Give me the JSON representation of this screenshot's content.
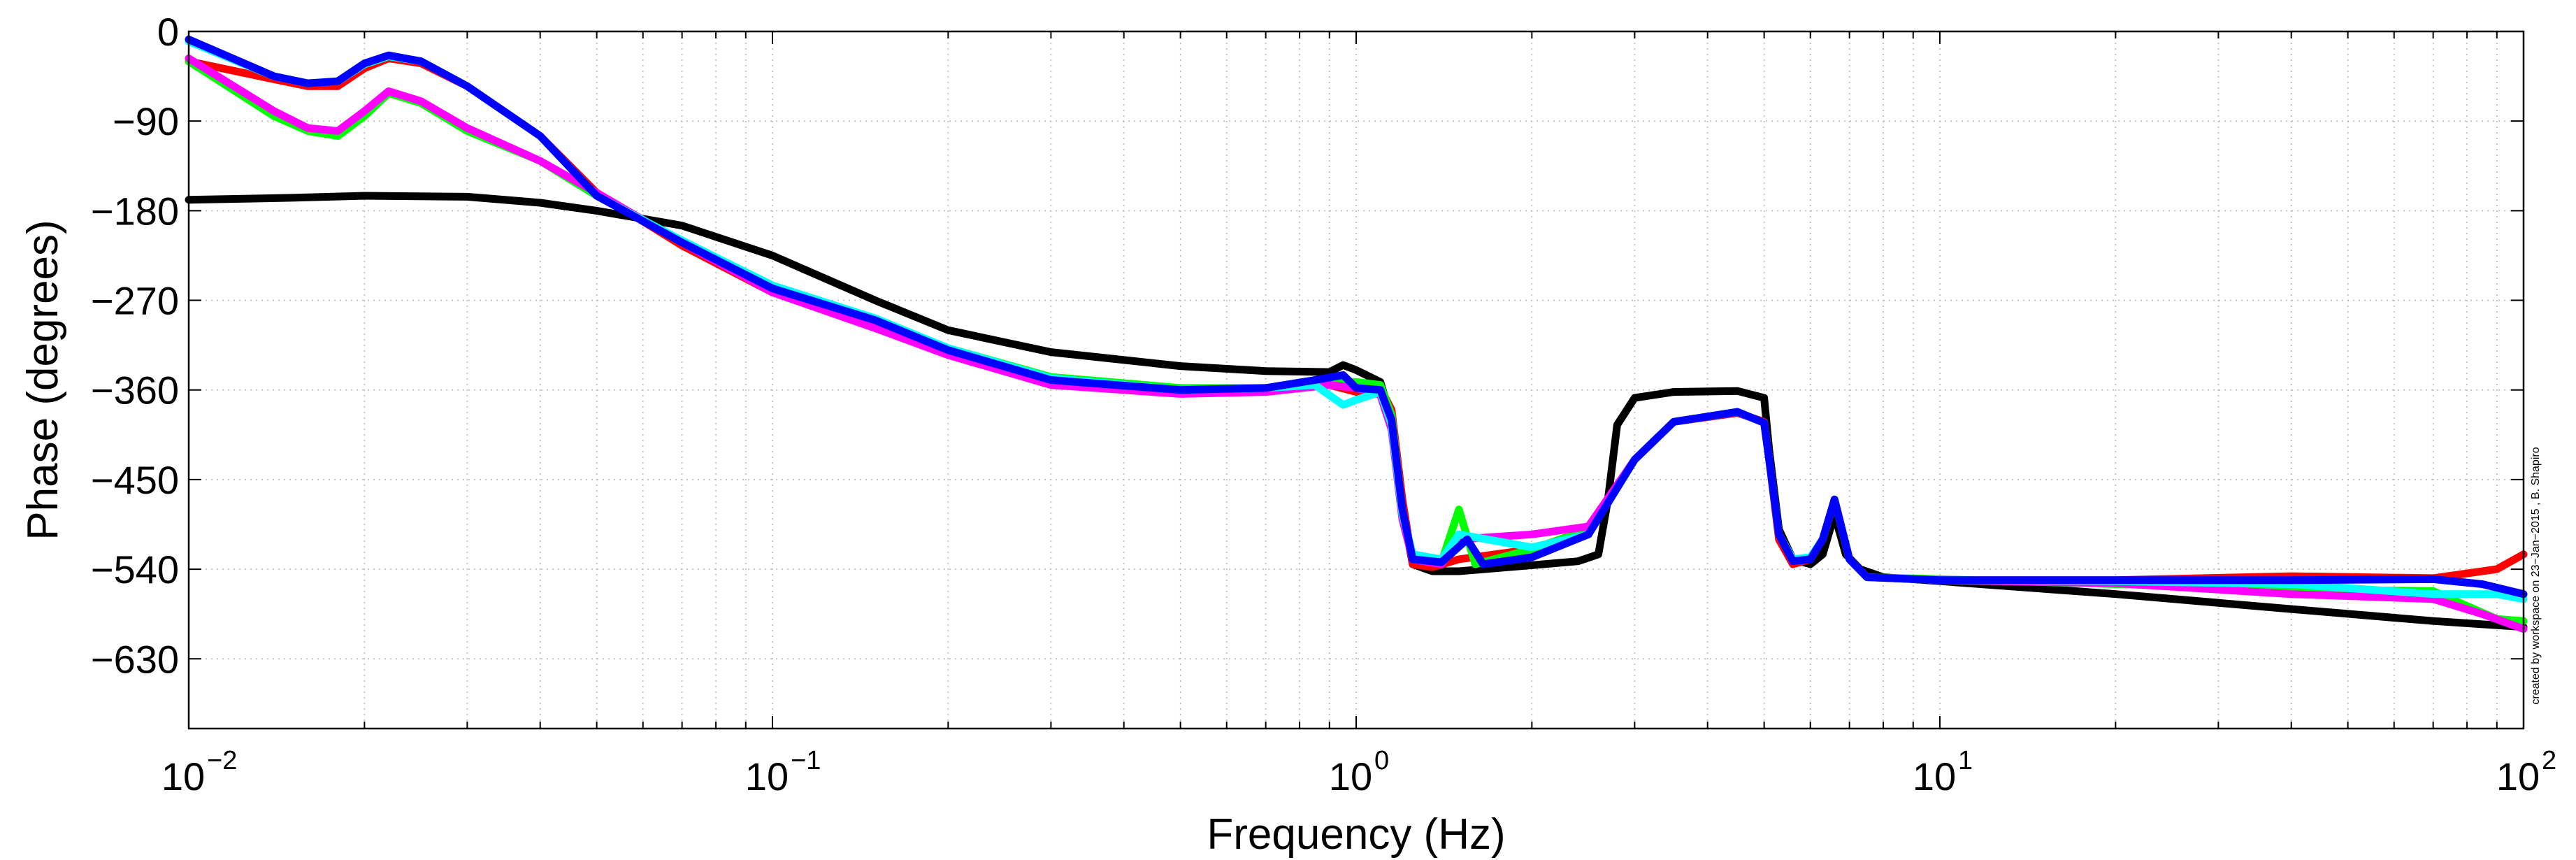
{
  "chart_data": {
    "type": "line",
    "title": "",
    "xlabel": "Frequency (Hz)",
    "ylabel": "Phase (degrees)",
    "xscale": "log",
    "xlim": [
      0.01,
      100
    ],
    "ylim": [
      -700,
      0
    ],
    "grid": true,
    "x_ticks": [
      {
        "base": "10",
        "exp": "−2",
        "value": 0.01
      },
      {
        "base": "10",
        "exp": "−1",
        "value": 0.1
      },
      {
        "base": "10",
        "exp": "0",
        "value": 1
      },
      {
        "base": "10",
        "exp": "1",
        "value": 10
      },
      {
        "base": "10",
        "exp": "2",
        "value": 100
      }
    ],
    "y_ticks": [
      {
        "label": "0",
        "value": 0
      },
      {
        "label": "−90",
        "value": -90
      },
      {
        "label": "−180",
        "value": -180
      },
      {
        "label": "−270",
        "value": -270
      },
      {
        "label": "−360",
        "value": -360
      },
      {
        "label": "−450",
        "value": -450
      },
      {
        "label": "−540",
        "value": -540
      },
      {
        "label": "−630",
        "value": -630
      }
    ],
    "annotation": "created by workspace on 23−Jan−2015 , B. Shapiro",
    "series": [
      {
        "color": "#000000",
        "points": [
          [
            0.01,
            -169
          ],
          [
            0.015,
            -167
          ],
          [
            0.02,
            -165
          ],
          [
            0.03,
            -166
          ],
          [
            0.04,
            -172
          ],
          [
            0.05,
            -180
          ],
          [
            0.07,
            -195
          ],
          [
            0.1,
            -225
          ],
          [
            0.15,
            -270
          ],
          [
            0.2,
            -300
          ],
          [
            0.3,
            -322
          ],
          [
            0.5,
            -336
          ],
          [
            0.7,
            -341
          ],
          [
            0.9,
            -342
          ],
          [
            0.95,
            -335
          ],
          [
            1.0,
            -340
          ],
          [
            1.1,
            -352
          ],
          [
            1.15,
            -390
          ],
          [
            1.2,
            -480
          ],
          [
            1.25,
            -535
          ],
          [
            1.35,
            -542
          ],
          [
            1.5,
            -542
          ],
          [
            2.0,
            -536
          ],
          [
            2.4,
            -532
          ],
          [
            2.6,
            -525
          ],
          [
            2.7,
            -470
          ],
          [
            2.8,
            -395
          ],
          [
            3.0,
            -368
          ],
          [
            3.5,
            -362
          ],
          [
            4.5,
            -361
          ],
          [
            5.0,
            -368
          ],
          [
            5.1,
            -420
          ],
          [
            5.3,
            -500
          ],
          [
            5.6,
            -530
          ],
          [
            6.0,
            -535
          ],
          [
            6.3,
            -525
          ],
          [
            6.6,
            -485
          ],
          [
            6.9,
            -525
          ],
          [
            7.3,
            -540
          ],
          [
            8,
            -548
          ],
          [
            10,
            -552
          ],
          [
            20,
            -565
          ],
          [
            40,
            -580
          ],
          [
            70,
            -592
          ],
          [
            100,
            -598
          ]
        ]
      },
      {
        "color": "#ff0000",
        "points": [
          [
            0.01,
            -30
          ],
          [
            0.014,
            -48
          ],
          [
            0.016,
            -55
          ],
          [
            0.018,
            -55
          ],
          [
            0.02,
            -37
          ],
          [
            0.022,
            -27
          ],
          [
            0.025,
            -32
          ],
          [
            0.03,
            -55
          ],
          [
            0.04,
            -105
          ],
          [
            0.05,
            -162
          ],
          [
            0.07,
            -215
          ],
          [
            0.1,
            -262
          ],
          [
            0.15,
            -292
          ],
          [
            0.2,
            -320
          ],
          [
            0.3,
            -350
          ],
          [
            0.5,
            -362
          ],
          [
            0.7,
            -360
          ],
          [
            0.9,
            -355
          ],
          [
            1.0,
            -362
          ],
          [
            1.1,
            -358
          ],
          [
            1.15,
            -380
          ],
          [
            1.2,
            -470
          ],
          [
            1.25,
            -535
          ],
          [
            1.35,
            -538
          ],
          [
            1.5,
            -530
          ],
          [
            2.0,
            -520
          ],
          [
            2.5,
            -500
          ],
          [
            3.0,
            -430
          ],
          [
            3.5,
            -392
          ],
          [
            4.5,
            -383
          ],
          [
            5.0,
            -392
          ],
          [
            5.1,
            -430
          ],
          [
            5.3,
            -510
          ],
          [
            5.6,
            -535
          ],
          [
            6.0,
            -530
          ],
          [
            6.3,
            -510
          ],
          [
            6.6,
            -470
          ],
          [
            7.0,
            -530
          ],
          [
            7.5,
            -548
          ],
          [
            10,
            -551
          ],
          [
            20,
            -551
          ],
          [
            40,
            -547
          ],
          [
            70,
            -549
          ],
          [
            90,
            -540
          ],
          [
            100,
            -525
          ]
        ]
      },
      {
        "color": "#00ff00",
        "points": [
          [
            0.01,
            -30
          ],
          [
            0.014,
            -85
          ],
          [
            0.016,
            -100
          ],
          [
            0.018,
            -105
          ],
          [
            0.02,
            -85
          ],
          [
            0.022,
            -62
          ],
          [
            0.025,
            -72
          ],
          [
            0.03,
            -100
          ],
          [
            0.04,
            -130
          ],
          [
            0.05,
            -165
          ],
          [
            0.07,
            -210
          ],
          [
            0.1,
            -255
          ],
          [
            0.15,
            -290
          ],
          [
            0.2,
            -318
          ],
          [
            0.3,
            -347
          ],
          [
            0.5,
            -358
          ],
          [
            0.7,
            -358
          ],
          [
            0.9,
            -352
          ],
          [
            1.0,
            -352
          ],
          [
            1.1,
            -355
          ],
          [
            1.15,
            -385
          ],
          [
            1.2,
            -480
          ],
          [
            1.25,
            -530
          ],
          [
            1.4,
            -533
          ],
          [
            1.5,
            -480
          ],
          [
            1.6,
            -535
          ],
          [
            2.0,
            -520
          ],
          [
            2.5,
            -500
          ],
          [
            3.0,
            -430
          ],
          [
            3.5,
            -392
          ],
          [
            4.5,
            -382
          ],
          [
            5.0,
            -393
          ],
          [
            5.1,
            -430
          ],
          [
            5.3,
            -505
          ],
          [
            5.6,
            -532
          ],
          [
            6.0,
            -530
          ],
          [
            6.3,
            -510
          ],
          [
            6.6,
            -470
          ],
          [
            7.0,
            -530
          ],
          [
            7.5,
            -548
          ],
          [
            10,
            -550
          ],
          [
            20,
            -555
          ],
          [
            40,
            -560
          ],
          [
            70,
            -562
          ],
          [
            90,
            -590
          ],
          [
            100,
            -592
          ]
        ]
      },
      {
        "color": "#ff00ff",
        "points": [
          [
            0.01,
            -27
          ],
          [
            0.014,
            -80
          ],
          [
            0.016,
            -97
          ],
          [
            0.018,
            -100
          ],
          [
            0.02,
            -80
          ],
          [
            0.022,
            -60
          ],
          [
            0.025,
            -70
          ],
          [
            0.03,
            -97
          ],
          [
            0.04,
            -130
          ],
          [
            0.05,
            -162
          ],
          [
            0.07,
            -212
          ],
          [
            0.1,
            -262
          ],
          [
            0.15,
            -298
          ],
          [
            0.2,
            -325
          ],
          [
            0.3,
            -355
          ],
          [
            0.5,
            -364
          ],
          [
            0.7,
            -362
          ],
          [
            0.9,
            -355
          ],
          [
            1.0,
            -358
          ],
          [
            1.1,
            -365
          ],
          [
            1.15,
            -400
          ],
          [
            1.2,
            -490
          ],
          [
            1.25,
            -530
          ],
          [
            1.4,
            -535
          ],
          [
            1.5,
            -510
          ],
          [
            2.0,
            -505
          ],
          [
            2.5,
            -497
          ],
          [
            3.0,
            -430
          ],
          [
            3.5,
            -392
          ],
          [
            4.5,
            -382
          ],
          [
            5.0,
            -393
          ],
          [
            5.1,
            -430
          ],
          [
            5.3,
            -505
          ],
          [
            5.6,
            -532
          ],
          [
            6.0,
            -530
          ],
          [
            6.3,
            -510
          ],
          [
            6.6,
            -470
          ],
          [
            7.0,
            -530
          ],
          [
            7.5,
            -548
          ],
          [
            10,
            -551
          ],
          [
            20,
            -554
          ],
          [
            40,
            -565
          ],
          [
            70,
            -570
          ],
          [
            85,
            -585
          ],
          [
            100,
            -600
          ]
        ]
      },
      {
        "color": "#00ffff",
        "points": [
          [
            0.01,
            -10
          ],
          [
            0.014,
            -45
          ],
          [
            0.016,
            -52
          ],
          [
            0.018,
            -50
          ],
          [
            0.02,
            -33
          ],
          [
            0.022,
            -25
          ],
          [
            0.025,
            -30
          ],
          [
            0.03,
            -55
          ],
          [
            0.04,
            -105
          ],
          [
            0.05,
            -165
          ],
          [
            0.07,
            -210
          ],
          [
            0.1,
            -255
          ],
          [
            0.15,
            -288
          ],
          [
            0.2,
            -318
          ],
          [
            0.3,
            -348
          ],
          [
            0.5,
            -360
          ],
          [
            0.7,
            -358
          ],
          [
            0.85,
            -355
          ],
          [
            0.95,
            -375
          ],
          [
            1.0,
            -370
          ],
          [
            1.1,
            -362
          ],
          [
            1.15,
            -395
          ],
          [
            1.2,
            -485
          ],
          [
            1.25,
            -525
          ],
          [
            1.4,
            -530
          ],
          [
            1.5,
            -505
          ],
          [
            2.0,
            -518
          ],
          [
            2.5,
            -505
          ],
          [
            3.0,
            -430
          ],
          [
            3.5,
            -392
          ],
          [
            4.5,
            -382
          ],
          [
            5.0,
            -393
          ],
          [
            5.1,
            -430
          ],
          [
            5.3,
            -505
          ],
          [
            5.6,
            -530
          ],
          [
            6.0,
            -528
          ],
          [
            6.3,
            -510
          ],
          [
            6.6,
            -470
          ],
          [
            7.0,
            -530
          ],
          [
            7.5,
            -548
          ],
          [
            10,
            -551
          ],
          [
            20,
            -552
          ],
          [
            40,
            -555
          ],
          [
            70,
            -565
          ],
          [
            90,
            -565
          ],
          [
            100,
            -570
          ]
        ]
      },
      {
        "color": "#0000ff",
        "points": [
          [
            0.01,
            -8
          ],
          [
            0.014,
            -45
          ],
          [
            0.016,
            -52
          ],
          [
            0.018,
            -50
          ],
          [
            0.02,
            -32
          ],
          [
            0.022,
            -24
          ],
          [
            0.025,
            -30
          ],
          [
            0.03,
            -55
          ],
          [
            0.04,
            -105
          ],
          [
            0.05,
            -165
          ],
          [
            0.07,
            -212
          ],
          [
            0.1,
            -258
          ],
          [
            0.15,
            -290
          ],
          [
            0.2,
            -320
          ],
          [
            0.3,
            -350
          ],
          [
            0.5,
            -360
          ],
          [
            0.7,
            -358
          ],
          [
            0.85,
            -350
          ],
          [
            0.95,
            -345
          ],
          [
            1.0,
            -358
          ],
          [
            1.1,
            -360
          ],
          [
            1.15,
            -390
          ],
          [
            1.2,
            -480
          ],
          [
            1.25,
            -530
          ],
          [
            1.4,
            -533
          ],
          [
            1.55,
            -510
          ],
          [
            1.65,
            -535
          ],
          [
            2.0,
            -528
          ],
          [
            2.5,
            -505
          ],
          [
            3.0,
            -430
          ],
          [
            3.5,
            -392
          ],
          [
            4.5,
            -382
          ],
          [
            5.0,
            -393
          ],
          [
            5.1,
            -430
          ],
          [
            5.3,
            -505
          ],
          [
            5.6,
            -532
          ],
          [
            6.0,
            -530
          ],
          [
            6.3,
            -510
          ],
          [
            6.6,
            -470
          ],
          [
            7.0,
            -530
          ],
          [
            7.5,
            -548
          ],
          [
            10,
            -551
          ],
          [
            20,
            -551
          ],
          [
            40,
            -551
          ],
          [
            70,
            -550
          ],
          [
            85,
            -555
          ],
          [
            100,
            -565
          ]
        ]
      }
    ]
  }
}
